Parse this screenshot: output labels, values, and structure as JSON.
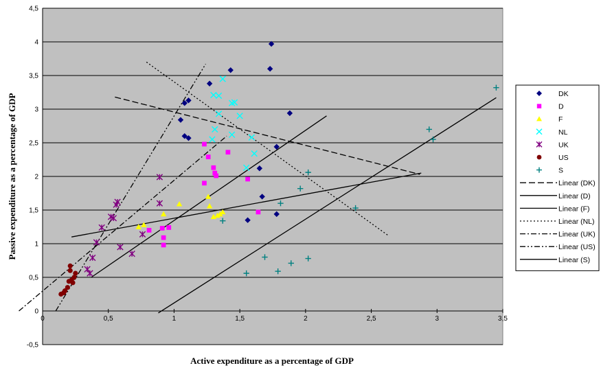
{
  "chart_data": {
    "type": "scatter",
    "title": "",
    "xlabel": "Active expenditure as a percentage of GDP",
    "ylabel": "Passive expenditure as a percentage of GDP",
    "xlim": [
      0,
      3.5
    ],
    "ylim": [
      -0.5,
      4.5
    ],
    "x_ticks": [
      "0",
      "0,5",
      "1",
      "1,5",
      "2",
      "2,5",
      "3",
      "3,5"
    ],
    "y_ticks": [
      "-0,5",
      "0",
      "0,5",
      "1",
      "1,5",
      "2",
      "2,5",
      "3",
      "3,5",
      "4",
      "4,5"
    ],
    "grid": "horizontal",
    "plot_background": "#c0c0c0",
    "legend_position": "right",
    "series": [
      {
        "name": "DK",
        "marker": "diamond",
        "color": "#000080",
        "points": [
          [
            1.74,
            3.97
          ],
          [
            1.73,
            3.6
          ],
          [
            1.43,
            3.58
          ],
          [
            1.27,
            3.38
          ],
          [
            1.11,
            3.13
          ],
          [
            1.08,
            3.09
          ],
          [
            1.05,
            2.84
          ],
          [
            1.08,
            2.6
          ],
          [
            1.11,
            2.57
          ],
          [
            1.88,
            2.94
          ],
          [
            1.78,
            2.44
          ],
          [
            1.65,
            2.12
          ],
          [
            1.67,
            1.7
          ],
          [
            1.56,
            1.35
          ],
          [
            1.78,
            1.44
          ]
        ]
      },
      {
        "name": "D",
        "marker": "square",
        "color": "#ff00ff",
        "points": [
          [
            1.23,
            2.48
          ],
          [
            1.26,
            2.29
          ],
          [
            1.41,
            2.36
          ],
          [
            1.3,
            2.13
          ],
          [
            1.31,
            2.05
          ],
          [
            1.32,
            2.01
          ],
          [
            1.23,
            1.9
          ],
          [
            1.56,
            1.96
          ],
          [
            1.64,
            1.47
          ],
          [
            0.96,
            1.24
          ],
          [
            0.81,
            1.2
          ],
          [
            0.92,
            1.09
          ],
          [
            0.92,
            0.98
          ],
          [
            0.91,
            1.23
          ]
        ]
      },
      {
        "name": "F",
        "marker": "triangle",
        "color": "#ffff00",
        "points": [
          [
            1.26,
            1.7
          ],
          [
            1.27,
            1.56
          ],
          [
            1.37,
            1.47
          ],
          [
            1.35,
            1.44
          ],
          [
            1.33,
            1.42
          ],
          [
            1.3,
            1.4
          ],
          [
            1.04,
            1.59
          ],
          [
            0.92,
            1.44
          ],
          [
            0.77,
            1.28
          ],
          [
            0.73,
            1.25
          ]
        ]
      },
      {
        "name": "NL",
        "marker": "x",
        "color": "#00ffff",
        "points": [
          [
            1.37,
            3.45
          ],
          [
            1.3,
            3.21
          ],
          [
            1.34,
            3.2
          ],
          [
            1.46,
            3.1
          ],
          [
            1.44,
            3.09
          ],
          [
            1.34,
            2.93
          ],
          [
            1.5,
            2.9
          ],
          [
            1.31,
            2.7
          ],
          [
            1.44,
            2.62
          ],
          [
            1.59,
            2.58
          ],
          [
            1.29,
            2.55
          ],
          [
            1.61,
            2.34
          ],
          [
            1.55,
            2.13
          ]
        ]
      },
      {
        "name": "UK",
        "marker": "star",
        "color": "#800080",
        "points": [
          [
            0.89,
            1.99
          ],
          [
            0.89,
            1.6
          ],
          [
            0.57,
            1.62
          ],
          [
            0.56,
            1.58
          ],
          [
            0.52,
            1.4
          ],
          [
            0.54,
            1.38
          ],
          [
            0.45,
            1.24
          ],
          [
            0.59,
            0.95
          ],
          [
            0.41,
            1.02
          ],
          [
            0.68,
            0.85
          ],
          [
            0.38,
            0.79
          ],
          [
            0.34,
            0.62
          ],
          [
            0.36,
            0.56
          ],
          [
            0.76,
            1.14
          ]
        ]
      },
      {
        "name": "US",
        "marker": "circle",
        "color": "#800000",
        "points": [
          [
            0.21,
            0.67
          ],
          [
            0.21,
            0.6
          ],
          [
            0.25,
            0.56
          ],
          [
            0.24,
            0.5
          ],
          [
            0.22,
            0.46
          ],
          [
            0.2,
            0.44
          ],
          [
            0.23,
            0.42
          ],
          [
            0.19,
            0.35
          ],
          [
            0.17,
            0.3
          ],
          [
            0.16,
            0.27
          ],
          [
            0.14,
            0.25
          ]
        ]
      },
      {
        "name": "S",
        "marker": "plus",
        "color": "#008080",
        "points": [
          [
            3.45,
            3.32
          ],
          [
            2.94,
            2.7
          ],
          [
            2.97,
            2.55
          ],
          [
            2.02,
            2.06
          ],
          [
            1.96,
            1.82
          ],
          [
            1.81,
            1.6
          ],
          [
            2.38,
            1.53
          ],
          [
            1.37,
            1.34
          ],
          [
            1.69,
            0.8
          ],
          [
            1.55,
            0.56
          ],
          [
            1.79,
            0.59
          ],
          [
            1.89,
            0.71
          ],
          [
            2.02,
            0.78
          ]
        ]
      }
    ],
    "trendlines": [
      {
        "name": "Linear (DK)",
        "style": "dashed",
        "color": "#000000",
        "x": [
          0.55,
          2.87
        ],
        "y": [
          3.18,
          2.03
        ]
      },
      {
        "name": "Linear (D)",
        "style": "solid",
        "color": "#000000",
        "x": [
          0.37,
          2.16
        ],
        "y": [
          0.5,
          2.9
        ]
      },
      {
        "name": "Linear (F)",
        "style": "solid",
        "color": "#000000",
        "x": [
          0.22,
          2.88
        ],
        "y": [
          1.1,
          2.05
        ]
      },
      {
        "name": "Linear (NL)",
        "style": "dotted",
        "color": "#000000",
        "x": [
          0.79,
          2.63
        ],
        "y": [
          3.7,
          1.12
        ]
      },
      {
        "name": "Linear (UK)",
        "style": "dash-dot",
        "color": "#000000",
        "x": [
          -0.18,
          1.4
        ],
        "y": [
          0.0,
          2.6
        ]
      },
      {
        "name": "Linear (US)",
        "style": "dash-dot-dot",
        "color": "#000000",
        "x": [
          0.1,
          1.24
        ],
        "y": [
          0.0,
          3.67
        ]
      },
      {
        "name": "Linear (S)",
        "style": "solid",
        "color": "#000000",
        "x": [
          0.88,
          3.45
        ],
        "y": [
          -0.03,
          3.17
        ]
      }
    ]
  }
}
